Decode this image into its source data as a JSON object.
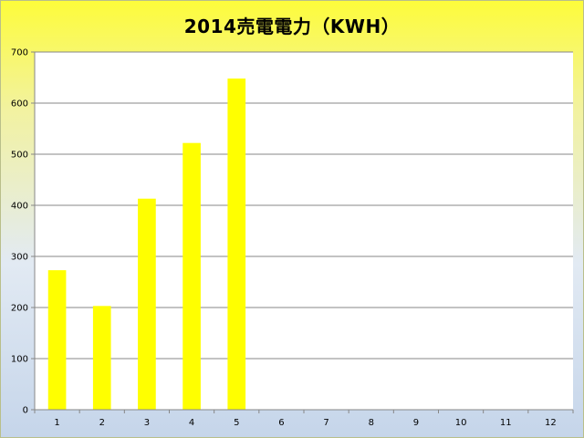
{
  "chart_data": {
    "type": "bar",
    "title": "2014売電電力（KWH）",
    "xlabel": "",
    "ylabel": "",
    "categories": [
      "1",
      "2",
      "3",
      "4",
      "5",
      "6",
      "7",
      "8",
      "9",
      "10",
      "11",
      "12"
    ],
    "series": [
      {
        "values": [
          273,
          203,
          413,
          522,
          648,
          null,
          null,
          null,
          null,
          null,
          null,
          null
        ],
        "color": "#ffff00"
      }
    ],
    "ylim": [
      0,
      700
    ],
    "yticks": [
      0,
      100,
      200,
      300,
      400,
      500,
      600,
      700
    ],
    "grid": true,
    "legend": "none",
    "colors": {
      "bar": "#ffff00",
      "grid": "#878787",
      "plot_background": "#ffffff"
    }
  }
}
